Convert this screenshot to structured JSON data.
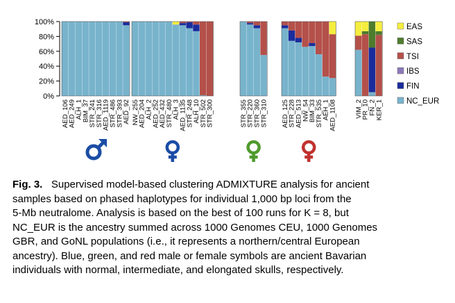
{
  "chart_data": {
    "type": "bar",
    "stacked": true,
    "orientation": "vertical",
    "y_ticks": [
      "0%",
      "20%",
      "40%",
      "60%",
      "80%",
      "100%"
    ],
    "ylim": [
      0,
      100
    ],
    "component_order_bottom_to_top": [
      "NC_EUR",
      "FIN",
      "IBS",
      "TSI",
      "SAS",
      "EAS"
    ],
    "legend": {
      "placement": "right",
      "entries": [
        {
          "name": "EAS",
          "color": "#f5ee3e"
        },
        {
          "name": "SAS",
          "color": "#4d7c2c"
        },
        {
          "name": "TSI",
          "color": "#b4504a"
        },
        {
          "name": "IBS",
          "color": "#8c78b8"
        },
        {
          "name": "FIN",
          "color": "#1a2c9c"
        },
        {
          "name": "NC_EUR",
          "color": "#78b3cc"
        }
      ]
    },
    "panels": [
      {
        "symbol": "male",
        "symbol_color": "#1b4da5",
        "bars": [
          {
            "label": "AED_106",
            "NC_EUR": 100,
            "FIN": 0,
            "IBS": 0,
            "TSI": 0,
            "SAS": 0,
            "EAS": 0
          },
          {
            "label": "AED_249",
            "NC_EUR": 100,
            "FIN": 0,
            "IBS": 0,
            "TSI": 0,
            "SAS": 0,
            "EAS": 0
          },
          {
            "label": "ALH_1",
            "NC_EUR": 100,
            "FIN": 0,
            "IBS": 0,
            "TSI": 0,
            "SAS": 0,
            "EAS": 0
          },
          {
            "label": "BIM_37",
            "NC_EUR": 100,
            "FIN": 0,
            "IBS": 0,
            "TSI": 0,
            "SAS": 0,
            "EAS": 0
          },
          {
            "label": "STR_241",
            "NC_EUR": 100,
            "FIN": 0,
            "IBS": 0,
            "TSI": 0,
            "SAS": 0,
            "EAS": 0
          },
          {
            "label": "STR_316",
            "NC_EUR": 100,
            "FIN": 0,
            "IBS": 0,
            "TSI": 0,
            "SAS": 0,
            "EAS": 0
          },
          {
            "label": "AED_1119",
            "NC_EUR": 100,
            "FIN": 0,
            "IBS": 0,
            "TSI": 0,
            "SAS": 0,
            "EAS": 0
          },
          {
            "label": "STR_486",
            "NC_EUR": 100,
            "FIN": 0,
            "IBS": 0,
            "TSI": 0,
            "SAS": 0,
            "EAS": 0
          },
          {
            "label": "STR_393",
            "NC_EUR": 100,
            "FIN": 0,
            "IBS": 0,
            "TSI": 0,
            "SAS": 0,
            "EAS": 0
          },
          {
            "label": "AED_92",
            "NC_EUR": 95,
            "FIN": 4,
            "IBS": 0,
            "TSI": 1,
            "SAS": 0,
            "EAS": 0
          }
        ]
      },
      {
        "symbol": "female",
        "symbol_color": "#1b4da5",
        "bars": [
          {
            "label": "NW_255",
            "NC_EUR": 100,
            "FIN": 0,
            "IBS": 0,
            "TSI": 0,
            "SAS": 0,
            "EAS": 0
          },
          {
            "label": "AED_204",
            "NC_EUR": 100,
            "FIN": 0,
            "IBS": 0,
            "TSI": 0,
            "SAS": 0,
            "EAS": 0
          },
          {
            "label": "ALH_2",
            "NC_EUR": 100,
            "FIN": 0,
            "IBS": 0,
            "TSI": 0,
            "SAS": 0,
            "EAS": 0
          },
          {
            "label": "AED_252",
            "NC_EUR": 100,
            "FIN": 0,
            "IBS": 0,
            "TSI": 0,
            "SAS": 0,
            "EAS": 0
          },
          {
            "label": "AED_432",
            "NC_EUR": 100,
            "FIN": 0,
            "IBS": 0,
            "TSI": 0,
            "SAS": 0,
            "EAS": 0
          },
          {
            "label": "STR_480",
            "NC_EUR": 100,
            "FIN": 0,
            "IBS": 0,
            "TSI": 0,
            "SAS": 0,
            "EAS": 0
          },
          {
            "label": "ALH_3",
            "NC_EUR": 96,
            "FIN": 0,
            "IBS": 0,
            "TSI": 0,
            "SAS": 0,
            "EAS": 4
          },
          {
            "label": "AED_1135",
            "NC_EUR": 95,
            "FIN": 3,
            "IBS": 0,
            "TSI": 2,
            "SAS": 0,
            "EAS": 0
          },
          {
            "label": "STR_248",
            "NC_EUR": 91,
            "FIN": 8,
            "IBS": 0,
            "TSI": 1,
            "SAS": 0,
            "EAS": 0
          },
          {
            "label": "ALH_10",
            "NC_EUR": 87,
            "FIN": 9,
            "IBS": 0,
            "TSI": 4,
            "SAS": 0,
            "EAS": 0
          },
          {
            "label": "STR_502",
            "NC_EUR": 1,
            "FIN": 0,
            "IBS": 0,
            "TSI": 99,
            "SAS": 0,
            "EAS": 0
          },
          {
            "label": "STR_300",
            "NC_EUR": 0,
            "FIN": 0,
            "IBS": 0,
            "TSI": 100,
            "SAS": 0,
            "EAS": 0
          }
        ]
      },
      {
        "symbol": "female",
        "symbol_color": "#4f9a2c",
        "bars": [
          {
            "label": "STR_355",
            "NC_EUR": 100,
            "FIN": 0,
            "IBS": 0,
            "TSI": 0,
            "SAS": 0,
            "EAS": 0
          },
          {
            "label": "STR_220",
            "NC_EUR": 96,
            "FIN": 2,
            "IBS": 0,
            "TSI": 2,
            "SAS": 0,
            "EAS": 0
          },
          {
            "label": "STR_360",
            "NC_EUR": 91,
            "FIN": 4,
            "IBS": 0,
            "TSI": 5,
            "SAS": 0,
            "EAS": 0
          },
          {
            "label": "STR_310",
            "NC_EUR": 55,
            "FIN": 0,
            "IBS": 0,
            "TSI": 45,
            "SAS": 0,
            "EAS": 0
          }
        ]
      },
      {
        "symbol": "female",
        "symbol_color": "#c0322f",
        "bars": [
          {
            "label": "AED_125",
            "NC_EUR": 91,
            "FIN": 4,
            "IBS": 0,
            "TSI": 5,
            "SAS": 0,
            "EAS": 0
          },
          {
            "label": "STR_228",
            "NC_EUR": 74,
            "FIN": 14,
            "IBS": 0,
            "TSI": 12,
            "SAS": 0,
            "EAS": 0
          },
          {
            "label": "AED_513",
            "NC_EUR": 72,
            "FIN": 6,
            "IBS": 0,
            "TSI": 22,
            "SAS": 0,
            "EAS": 0
          },
          {
            "label": "NW_54",
            "NC_EUR": 66,
            "FIN": 0,
            "IBS": 0,
            "TSI": 34,
            "SAS": 0,
            "EAS": 0
          },
          {
            "label": "BIM_33",
            "NC_EUR": 67,
            "FIN": 4,
            "IBS": 0,
            "TSI": 29,
            "SAS": 0,
            "EAS": 0
          },
          {
            "label": "STR_535",
            "NC_EUR": 56,
            "FIN": 0,
            "IBS": 0,
            "TSI": 44,
            "SAS": 0,
            "EAS": 0
          },
          {
            "label": "AEH_1",
            "NC_EUR": 26,
            "FIN": 0,
            "IBS": 0,
            "TSI": 74,
            "SAS": 0,
            "EAS": 0
          },
          {
            "label": "AED_1108",
            "NC_EUR": 24,
            "FIN": 0,
            "IBS": 0,
            "TSI": 59,
            "SAS": 0,
            "EAS": 17
          }
        ]
      },
      {
        "symbol": null,
        "symbol_color": null,
        "bars": [
          {
            "label": "VIM_2",
            "NC_EUR": 62,
            "FIN": 0,
            "IBS": 0,
            "TSI": 19,
            "SAS": 0,
            "EAS": 19
          },
          {
            "label": "PR_10",
            "NC_EUR": 0,
            "FIN": 0,
            "IBS": 0,
            "TSI": 83,
            "SAS": 4,
            "EAS": 13
          },
          {
            "label": "FN_2",
            "NC_EUR": 5,
            "FIN": 60,
            "IBS": 0,
            "TSI": 0,
            "SAS": 35,
            "EAS": 0
          },
          {
            "label": "KER_1",
            "NC_EUR": 0,
            "FIN": 0,
            "IBS": 0,
            "TSI": 82,
            "SAS": 5,
            "EAS": 13
          }
        ]
      }
    ]
  },
  "caption": {
    "label": "Fig. 3.",
    "line1": "Supervised model-based clustering ADMIXTURE analysis for ancient",
    "line2": "samples based on phased haplotypes for individual 1,000 bp loci from the",
    "line3": "5-Mb neutralome. Analysis is based on the best of 100 runs for K = 8, but",
    "line4": "NC_EUR is the ancestry summed across 1000 Genomes CEU, 1000 Genomes",
    "line5": "GBR, and GoNL populations (i.e., it represents a northern/central European",
    "line6": "ancestry). Blue, green, and red male or female symbols are ancient Bavarian",
    "line7": "individuals with normal, intermediate, and elongated skulls, respectively."
  }
}
